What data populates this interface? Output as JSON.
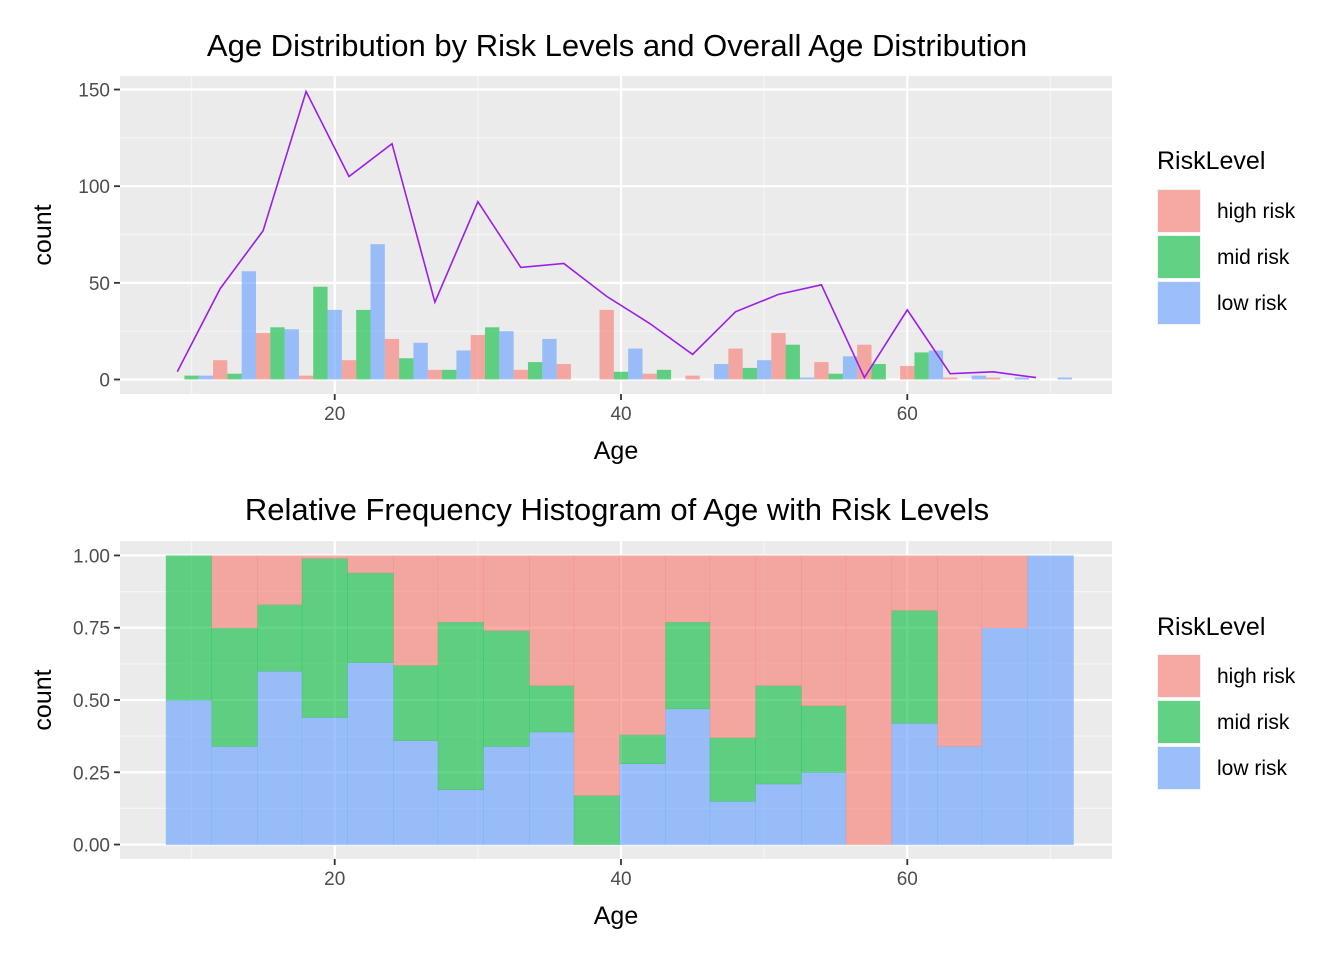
{
  "legend": {
    "title": "RiskLevel",
    "entries": [
      {
        "key": "high",
        "label": "high risk",
        "color": "#F8766D"
      },
      {
        "key": "mid",
        "label": "mid risk",
        "color": "#00BA38"
      },
      {
        "key": "low",
        "label": "low risk",
        "color": "#619CFF"
      }
    ]
  },
  "chart_data": [
    {
      "type": "bar",
      "title": "Age Distribution by Risk Levels and Overall Age Distribution",
      "xlabel": "Age",
      "ylabel": "count",
      "xlim": [
        5,
        74.3
      ],
      "ylim": [
        -7.5,
        157
      ],
      "xticks": [
        20,
        40,
        60
      ],
      "yticks": [
        0,
        50,
        100,
        150
      ],
      "grid": true,
      "legend_position": "right",
      "bar_width": 1.0,
      "series": [
        {
          "key": "high",
          "name": "high risk",
          "color": "#F8766D",
          "x": [
            12,
            15,
            18,
            21,
            24,
            27,
            30,
            33,
            36,
            39,
            42,
            45,
            48,
            51,
            54,
            57,
            60,
            63,
            66
          ],
          "values": [
            10,
            24,
            2,
            10,
            21,
            5,
            23,
            5,
            8,
            36,
            3,
            2,
            16,
            24,
            9,
            18,
            7,
            1,
            1
          ]
        },
        {
          "key": "mid",
          "name": "mid risk",
          "color": "#00BA38",
          "x": [
            10,
            13,
            16,
            19,
            22,
            25,
            28,
            31,
            34,
            37,
            40,
            43,
            46,
            49,
            52,
            55,
            58,
            61
          ],
          "values": [
            2,
            3,
            27,
            48,
            36,
            11,
            5,
            27,
            9,
            0,
            4,
            5,
            0,
            6,
            18,
            3,
            8,
            14
          ]
        },
        {
          "key": "low",
          "name": "low risk",
          "color": "#619CFF",
          "x": [
            11,
            14,
            17,
            20,
            23,
            26,
            29,
            32,
            35,
            38,
            41,
            44,
            47,
            50,
            53,
            56,
            59,
            62,
            65,
            68,
            71
          ],
          "values": [
            2,
            56,
            26,
            36,
            70,
            19,
            15,
            25,
            21,
            0,
            16,
            0,
            8,
            10,
            1,
            12,
            0,
            15,
            2,
            1,
            1
          ]
        }
      ],
      "overall_line": {
        "name": "Overall",
        "color": "#9B1FE8",
        "x": [
          9,
          12,
          15,
          18,
          21,
          24,
          27,
          30,
          33,
          36,
          39,
          42,
          45,
          48,
          51,
          54,
          57,
          60,
          63,
          66,
          69
        ],
        "values": [
          4,
          47,
          77,
          149,
          105,
          122,
          40,
          92,
          58,
          60,
          43,
          29,
          13,
          35,
          44,
          49,
          1,
          36,
          3,
          4,
          1
        ]
      }
    },
    {
      "type": "bar",
      "stacked": "fill",
      "title": "Relative Frequency Histogram of Age with Risk Levels",
      "xlabel": "Age",
      "ylabel": "count",
      "xlim": [
        5,
        74.3
      ],
      "ylim": [
        -0.05,
        1.05
      ],
      "xticks": [
        20,
        40,
        60
      ],
      "yticks": [
        "0.00",
        "0.25",
        "0.50",
        "0.75",
        "1.00"
      ],
      "grid": true,
      "legend_position": "right",
      "bin_edges": [
        8.2,
        11.4,
        14.6,
        17.7,
        20.9,
        24.1,
        27.2,
        30.4,
        33.6,
        36.7,
        39.9,
        43.1,
        46.2,
        49.4,
        52.6,
        55.7,
        58.9,
        62.1,
        65.2,
        68.4,
        71.6
      ],
      "series": [
        {
          "key": "low",
          "name": "low risk",
          "color": "#619CFF",
          "values": [
            0.5,
            0.34,
            0.6,
            0.44,
            0.63,
            0.36,
            0.19,
            0.34,
            0.39,
            0.0,
            0.28,
            0.47,
            0.15,
            0.21,
            0.25,
            0.0,
            0.42,
            0.34,
            0.75,
            1.0
          ]
        },
        {
          "key": "mid",
          "name": "mid risk",
          "color": "#00BA38",
          "values": [
            0.5,
            0.41,
            0.23,
            0.55,
            0.31,
            0.26,
            0.58,
            0.4,
            0.16,
            0.17,
            0.1,
            0.3,
            0.22,
            0.34,
            0.23,
            0.0,
            0.39,
            0.0,
            0.0,
            0.0
          ]
        },
        {
          "key": "high",
          "name": "high risk",
          "color": "#F8766D",
          "values": [
            0.0,
            0.25,
            0.17,
            0.01,
            0.06,
            0.38,
            0.23,
            0.26,
            0.45,
            0.83,
            0.62,
            0.23,
            0.63,
            0.45,
            0.52,
            1.0,
            0.19,
            0.66,
            0.25,
            0.0
          ]
        }
      ]
    }
  ]
}
